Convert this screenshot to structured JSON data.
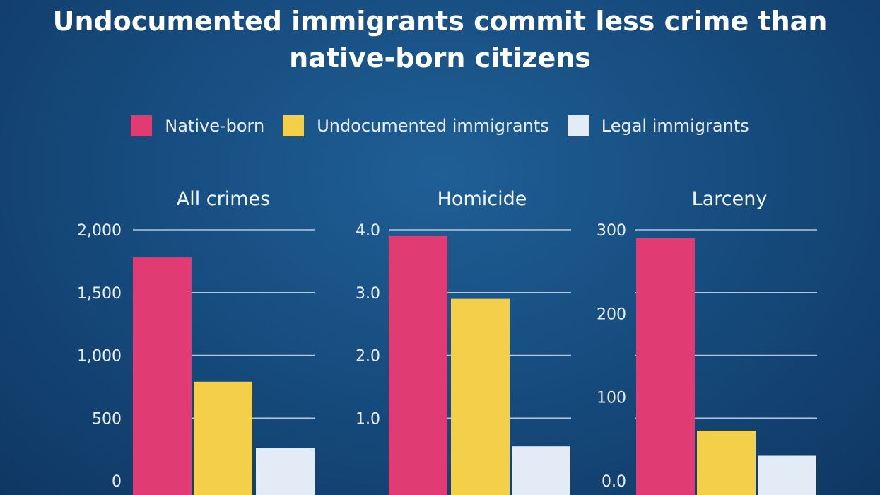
{
  "chart_data": [
    {
      "type": "bar",
      "title": "All crimes",
      "categories": [
        "Native-born",
        "Undocumented immigrants",
        "Legal immigrants"
      ],
      "values": [
        1780,
        790,
        260
      ],
      "ylim": [
        0,
        2000
      ],
      "yticks": [
        0,
        500,
        1000,
        1500,
        2000
      ],
      "ytick_labels": [
        "0",
        "500",
        "1,000",
        "1,500",
        "2,000"
      ],
      "grid": true
    },
    {
      "type": "bar",
      "title": "Homicide",
      "categories": [
        "Native-born",
        "Undocumented immigrants",
        "Legal immigrants"
      ],
      "values": [
        3.9,
        2.9,
        0.55
      ],
      "ylim": [
        0,
        4.0
      ],
      "yticks": [
        0,
        1,
        2,
        3,
        4
      ],
      "ytick_labels": [
        "",
        "1.0",
        "2.0",
        "3.0",
        "4.0"
      ],
      "grid": true
    },
    {
      "type": "bar",
      "title": "Larceny",
      "categories": [
        "Native-born",
        "Undocumented immigrants",
        "Legal immigrants"
      ],
      "values": [
        290,
        60,
        30
      ],
      "ylim": [
        0,
        300
      ],
      "yticks": [
        0,
        75,
        150,
        225,
        300
      ],
      "ytick_labels": [
        "0.0",
        "100",
        "200",
        "300"
      ],
      "ytick_label_values": [
        0,
        100,
        200,
        300
      ],
      "grid": true
    }
  ],
  "title": "Undocumented immigrants commit less crime than native-born citizens",
  "legend": [
    {
      "label": "Native-born",
      "color": "#e03c73"
    },
    {
      "label": "Undocumented immigrants",
      "color": "#f3cf4a"
    },
    {
      "label": "Legal immigrants",
      "color": "#e3ecf6"
    }
  ]
}
